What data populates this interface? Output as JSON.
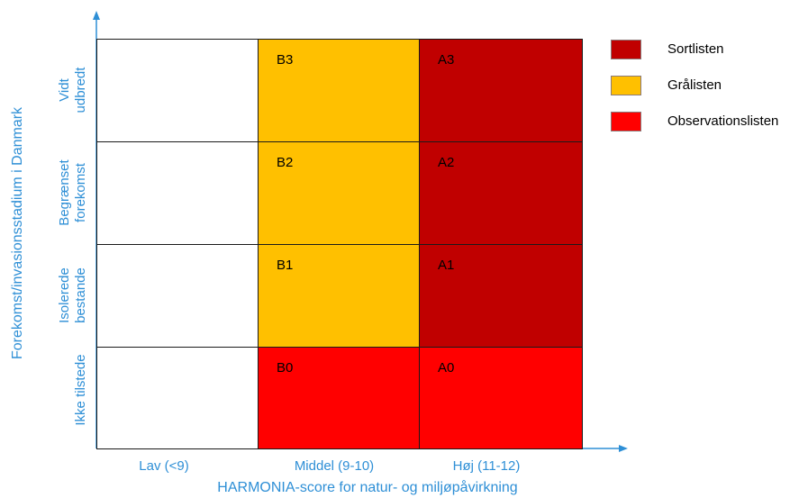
{
  "diagram": {
    "y_axis_title": "Forekomst/invasionsstadium i Danmark",
    "x_axis_title": "HARMONIA-score for natur- og miljøpåvirkning",
    "columns": [
      {
        "label": "Lav (<9)"
      },
      {
        "label": "Middel (9-10)"
      },
      {
        "label": "Høj (11-12)"
      }
    ],
    "rows": [
      {
        "label_lines": [
          "Vidt",
          "udbredt"
        ]
      },
      {
        "label_lines": [
          "Begrænset",
          "forekomst"
        ]
      },
      {
        "label_lines": [
          "Isolerede",
          "bestande"
        ]
      },
      {
        "label_lines": [
          "Ikke tilstede",
          ""
        ]
      }
    ],
    "cells": [
      [
        "",
        "B3",
        "A3"
      ],
      [
        "",
        "B2",
        "A2"
      ],
      [
        "",
        "B1",
        "A1"
      ],
      [
        "",
        "B0",
        "A0"
      ]
    ],
    "cell_colors": [
      [
        "#ffffff",
        "#ffc000",
        "#c00000"
      ],
      [
        "#ffffff",
        "#ffc000",
        "#c00000"
      ],
      [
        "#ffffff",
        "#ffc000",
        "#c00000"
      ],
      [
        "#ffffff",
        "#ff0000",
        "#ff0000"
      ]
    ],
    "axis_color": "#2e8fd6"
  },
  "legend": [
    {
      "label": "Sortlisten",
      "color": "#c00000"
    },
    {
      "label": "Grålisten",
      "color": "#ffc000"
    },
    {
      "label": "Observationslisten",
      "color": "#ff0000"
    }
  ]
}
